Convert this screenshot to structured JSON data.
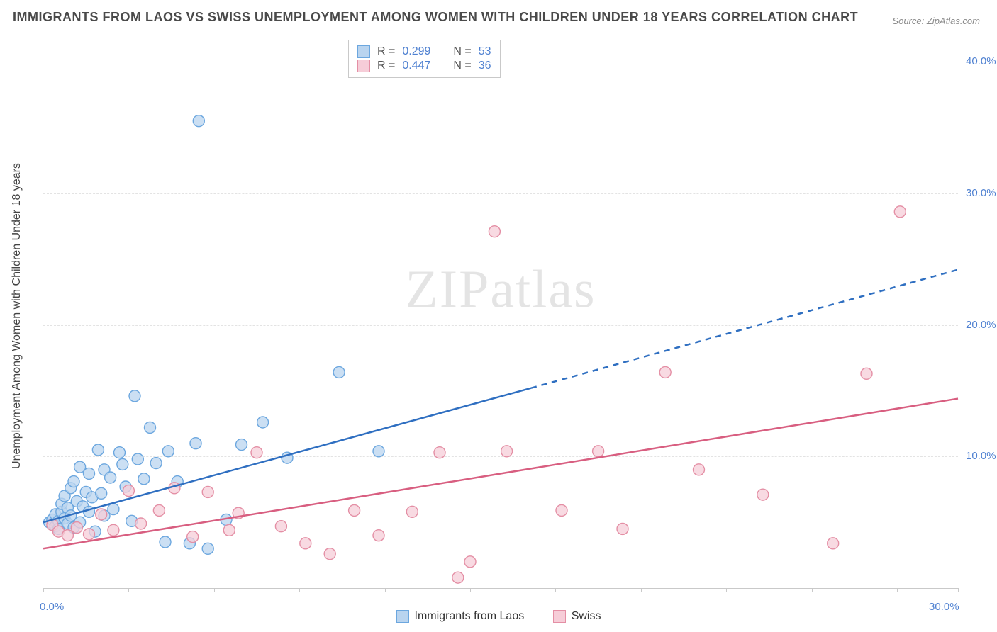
{
  "title": "IMMIGRANTS FROM LAOS VS SWISS UNEMPLOYMENT AMONG WOMEN WITH CHILDREN UNDER 18 YEARS CORRELATION CHART",
  "source_label": "Source:",
  "source_value": "ZipAtlas.com",
  "ylabel": "Unemployment Among Women with Children Under 18 years",
  "watermark_a": "ZIP",
  "watermark_b": "atlas",
  "chart": {
    "type": "scatter",
    "xlim": [
      0,
      30
    ],
    "ylim": [
      0,
      42
    ],
    "x_tick_positions": [
      0,
      2.8,
      5.6,
      8.4,
      11.2,
      14.0,
      16.8,
      19.6,
      22.4,
      25.2,
      28.0,
      30.0
    ],
    "x_tick_labels_show": [
      {
        "pos": 0,
        "label": "0.0%"
      },
      {
        "pos": 30,
        "label": "30.0%"
      }
    ],
    "y_gridlines": [
      10,
      20,
      30,
      40
    ],
    "y_tick_labels": [
      "10.0%",
      "20.0%",
      "30.0%",
      "40.0%"
    ],
    "grid_color": "#e3e3e3",
    "axis_color": "#c9c9c9",
    "tick_label_color": "#4f81d1",
    "background_color": "#ffffff",
    "marker_radius": 8,
    "marker_stroke_width": 1.4,
    "trend_stroke_width": 2.5,
    "series": [
      {
        "id": "laos",
        "label": "Immigrants from Laos",
        "fill": "#b9d4ef",
        "stroke": "#6ca7df",
        "trend_color": "#2f6fc1",
        "R": "0.299",
        "N": "53",
        "trend": {
          "x0": 0,
          "y0": 5.0,
          "x1_solid": 16.0,
          "y1_solid": 15.2,
          "x1_dash": 30.0,
          "y1_dash": 24.2
        },
        "points": [
          [
            0.2,
            5.0
          ],
          [
            0.3,
            5.2
          ],
          [
            0.4,
            4.7
          ],
          [
            0.4,
            5.6
          ],
          [
            0.5,
            5.1
          ],
          [
            0.5,
            4.5
          ],
          [
            0.6,
            5.8
          ],
          [
            0.6,
            6.4
          ],
          [
            0.7,
            5.3
          ],
          [
            0.7,
            7.0
          ],
          [
            0.8,
            4.9
          ],
          [
            0.8,
            6.1
          ],
          [
            0.9,
            5.5
          ],
          [
            0.9,
            7.6
          ],
          [
            1.0,
            4.6
          ],
          [
            1.0,
            8.1
          ],
          [
            1.1,
            6.6
          ],
          [
            1.2,
            5.0
          ],
          [
            1.2,
            9.2
          ],
          [
            1.3,
            6.2
          ],
          [
            1.4,
            7.3
          ],
          [
            1.5,
            5.8
          ],
          [
            1.5,
            8.7
          ],
          [
            1.6,
            6.9
          ],
          [
            1.7,
            4.3
          ],
          [
            1.8,
            10.5
          ],
          [
            1.9,
            7.2
          ],
          [
            2.0,
            5.5
          ],
          [
            2.0,
            9.0
          ],
          [
            2.2,
            8.4
          ],
          [
            2.3,
            6.0
          ],
          [
            2.5,
            10.3
          ],
          [
            2.6,
            9.4
          ],
          [
            2.7,
            7.7
          ],
          [
            2.9,
            5.1
          ],
          [
            3.0,
            14.6
          ],
          [
            3.1,
            9.8
          ],
          [
            3.3,
            8.3
          ],
          [
            3.5,
            12.2
          ],
          [
            3.7,
            9.5
          ],
          [
            4.0,
            3.5
          ],
          [
            4.1,
            10.4
          ],
          [
            4.4,
            8.1
          ],
          [
            4.8,
            3.4
          ],
          [
            5.0,
            11.0
          ],
          [
            5.4,
            3.0
          ],
          [
            5.1,
            35.5
          ],
          [
            6.5,
            10.9
          ],
          [
            7.2,
            12.6
          ],
          [
            8.0,
            9.9
          ],
          [
            9.7,
            16.4
          ],
          [
            11.0,
            10.4
          ],
          [
            6.0,
            5.2
          ]
        ]
      },
      {
        "id": "swiss",
        "label": "Swiss",
        "fill": "#f6cdd8",
        "stroke": "#e48fa5",
        "trend_color": "#d85e80",
        "R": "0.447",
        "N": "36",
        "trend": {
          "x0": 0,
          "y0": 3.0,
          "x1_solid": 30.0,
          "y1_solid": 14.4,
          "x1_dash": 30.0,
          "y1_dash": 14.4
        },
        "points": [
          [
            0.3,
            4.8
          ],
          [
            0.5,
            4.3
          ],
          [
            0.8,
            4.0
          ],
          [
            1.1,
            4.6
          ],
          [
            1.5,
            4.1
          ],
          [
            1.9,
            5.6
          ],
          [
            2.3,
            4.4
          ],
          [
            2.8,
            7.4
          ],
          [
            3.2,
            4.9
          ],
          [
            3.8,
            5.9
          ],
          [
            4.3,
            7.6
          ],
          [
            4.9,
            3.9
          ],
          [
            5.4,
            7.3
          ],
          [
            6.1,
            4.4
          ],
          [
            6.4,
            5.7
          ],
          [
            7.0,
            10.3
          ],
          [
            7.8,
            4.7
          ],
          [
            8.6,
            3.4
          ],
          [
            9.4,
            2.6
          ],
          [
            10.2,
            5.9
          ],
          [
            11.0,
            4.0
          ],
          [
            12.1,
            5.8
          ],
          [
            13.0,
            10.3
          ],
          [
            13.6,
            0.8
          ],
          [
            14.0,
            2.0
          ],
          [
            15.2,
            10.4
          ],
          [
            14.8,
            27.1
          ],
          [
            17.0,
            5.9
          ],
          [
            18.2,
            10.4
          ],
          [
            19.0,
            4.5
          ],
          [
            20.4,
            16.4
          ],
          [
            21.5,
            9.0
          ],
          [
            23.6,
            7.1
          ],
          [
            25.9,
            3.4
          ],
          [
            27.0,
            16.3
          ],
          [
            28.1,
            28.6
          ]
        ]
      }
    ]
  },
  "legend_top": {
    "R_label": "R =",
    "N_label": "N ="
  }
}
